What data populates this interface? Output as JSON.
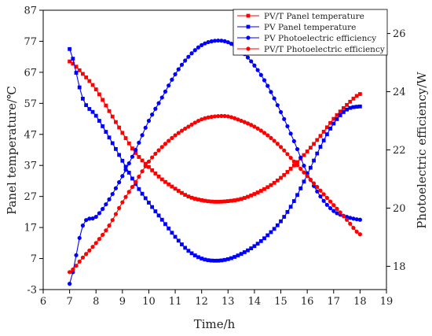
{
  "chart_data": {
    "type": "line",
    "xlabel": "Time/h",
    "ylabel_left": "Panel temperature/℃",
    "ylabel_right": "Photoelectric efficiency/W",
    "xlim": [
      6,
      19
    ],
    "xticks": [
      6,
      7,
      8,
      9,
      10,
      11,
      12,
      13,
      14,
      15,
      16,
      17,
      18,
      19
    ],
    "ylim_left": [
      -3,
      87
    ],
    "yticks_left": [
      -3,
      7,
      17,
      27,
      37,
      47,
      57,
      67,
      77,
      87
    ],
    "ylim_right": [
      17.2,
      26.8
    ],
    "yticks_right": [
      18,
      20,
      22,
      24,
      26
    ],
    "legend_position": "top-right",
    "grid": false,
    "series": [
      {
        "name": "PV/T Panel temperature",
        "axis": "left",
        "color": "#ff0000",
        "marker": "square",
        "x": [
          7,
          7.5,
          8,
          8.5,
          9,
          9.5,
          10,
          10.5,
          11,
          11.5,
          12,
          12.5,
          13,
          13.5,
          14,
          14.5,
          15,
          15.5,
          16,
          16.5,
          17,
          17.5,
          18
        ],
        "y": [
          70.5,
          66.5,
          61.5,
          54.5,
          47.5,
          41,
          36.5,
          32.5,
          29.5,
          27,
          25.8,
          25.3,
          25.5,
          26.2,
          27.8,
          30,
          33,
          37,
          41.5,
          46.5,
          52,
          56.5,
          60
        ]
      },
      {
        "name": "PV Panel temperature",
        "axis": "left",
        "color": "#0000ff",
        "marker": "square",
        "x": [
          7,
          7.5,
          8,
          8.5,
          9,
          9.5,
          10,
          10.5,
          11,
          11.5,
          12,
          12.5,
          13,
          13.5,
          14,
          14.5,
          15,
          15.5,
          16,
          16.5,
          17,
          17.5,
          18
        ],
        "y": [
          74.5,
          58.5,
          53,
          46,
          38.5,
          31,
          25,
          19.5,
          14,
          9.5,
          7,
          6.3,
          6.8,
          8.5,
          11,
          14.5,
          19,
          25.5,
          34,
          43,
          50.5,
          55,
          56
        ]
      },
      {
        "name": "PV Photoelectric efficiency",
        "axis": "right",
        "color": "#0000ff",
        "marker": "circle",
        "x": [
          7,
          7.5,
          8,
          8.5,
          9,
          9.5,
          10,
          10.5,
          11,
          11.5,
          12,
          12.5,
          13,
          13.5,
          14,
          14.5,
          15,
          15.5,
          16,
          16.5,
          17,
          17.5,
          18
        ],
        "y": [
          17.4,
          19.4,
          19.7,
          20.3,
          21.1,
          22.0,
          23.0,
          23.8,
          24.6,
          25.2,
          25.6,
          25.75,
          25.7,
          25.4,
          24.9,
          24.2,
          23.3,
          22.3,
          21.2,
          20.4,
          19.9,
          19.7,
          19.6
        ]
      },
      {
        "name": "PV/T Photoelectric efficiency",
        "axis": "right",
        "color": "#ff0000",
        "marker": "circle",
        "x": [
          7,
          7.5,
          8,
          8.5,
          9,
          9.5,
          10,
          10.5,
          11,
          11.5,
          12,
          12.5,
          13,
          13.5,
          14,
          14.5,
          15,
          15.5,
          16,
          16.5,
          17,
          17.5,
          18
        ],
        "y": [
          17.8,
          18.3,
          18.8,
          19.4,
          20.2,
          20.9,
          21.6,
          22.1,
          22.5,
          22.8,
          23.05,
          23.15,
          23.15,
          23.0,
          22.8,
          22.5,
          22.1,
          21.6,
          21.1,
          20.6,
          20.1,
          19.6,
          19.1
        ]
      }
    ]
  }
}
